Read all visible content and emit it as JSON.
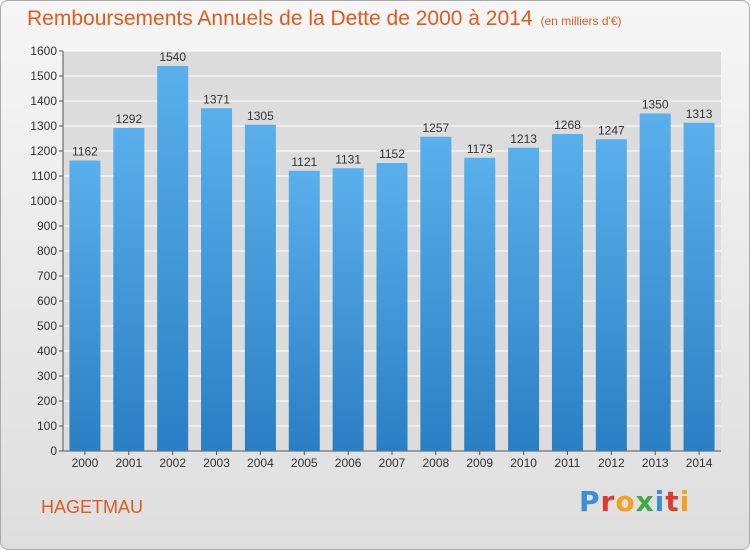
{
  "title": "Remboursements Annuels de la Dette de 2000 à 2014",
  "unit": "(en milliers d'€)",
  "commune": "HAGETMAU",
  "logo": "Proxiti",
  "colors": {
    "bar_top": "#5ab0ec",
    "bar_bottom": "#2a7fc4",
    "title": "#e15a1e",
    "grid": "#ffffff"
  },
  "chart_data": {
    "type": "bar",
    "title": "Remboursements Annuels de la Dette de 2000 à 2014",
    "xlabel": "",
    "ylabel": "",
    "ylim": [
      0,
      1600
    ],
    "yticks": [
      0,
      100,
      200,
      300,
      400,
      500,
      600,
      700,
      800,
      900,
      1000,
      1100,
      1200,
      1300,
      1400,
      1500,
      1600
    ],
    "grid": true,
    "categories": [
      "2000",
      "2001",
      "2002",
      "2003",
      "2004",
      "2005",
      "2006",
      "2007",
      "2008",
      "2009",
      "2010",
      "2011",
      "2012",
      "2013",
      "2014"
    ],
    "values": [
      1162,
      1292,
      1540,
      1371,
      1305,
      1121,
      1131,
      1152,
      1257,
      1173,
      1213,
      1268,
      1247,
      1350,
      1313
    ]
  }
}
